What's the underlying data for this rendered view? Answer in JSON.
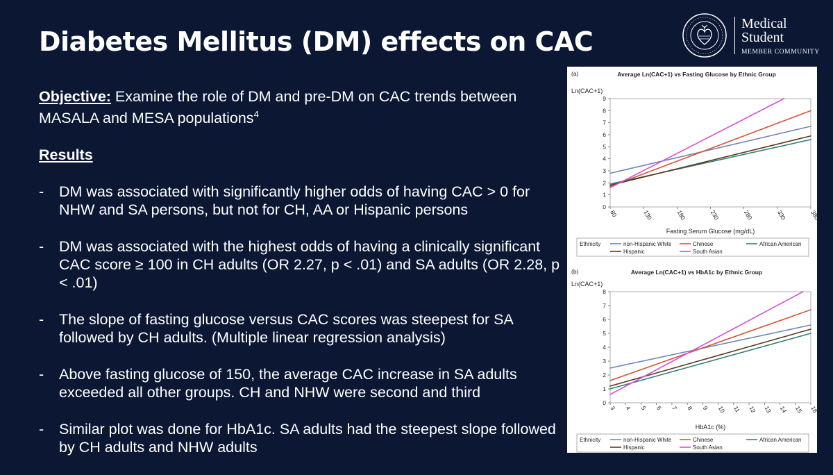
{
  "slide": {
    "title": "Diabetes Mellitus (DM) effects on CAC",
    "objective_label": "Objective:",
    "objective_text": " Examine the role of DM and pre-DM on CAC trends between MASALA and MESA populations",
    "objective_superscript": "4",
    "results_heading": "Results",
    "bullet_marker": "-",
    "bullets": [
      "DM was associated with significantly higher odds of having CAC > 0 for NHW and SA persons, but not for CH, AA or Hispanic persons",
      "DM was associated with the highest odds of having a clinically significant CAC score ≥ 100 in CH adults (OR 2.27, p < .01) and SA adults (OR 2.28, p < .01)",
      "The slope of fasting glucose versus CAC scores was steepest for SA followed by CH adults. (Multiple linear regression analysis)",
      "Above fasting glucose of 150, the average CAC increase in SA adults exceeded all other groups. CH and NHW were second and third",
      "Similar plot was done for HbA1c. SA adults had the steepest slope followed by CH adults and NHW adults"
    ]
  },
  "logo": {
    "line1": "Medical",
    "line2": "Student",
    "line3": "MEMBER COMMUNITY",
    "seal_text": "AMERICAN COLLEGE of CARDIOLOGY"
  },
  "colors": {
    "background": "#0b1733",
    "text": "#ffffff",
    "non_hispanic_white": "#6f86b8",
    "chinese": "#d4553a",
    "african_american": "#2d8077",
    "hispanic": "#5c3a1e",
    "south_asian": "#d64fd6"
  },
  "chart_data": [
    {
      "type": "line",
      "panel_label": "(a)",
      "title": "Average Ln(CAC+1) vs Fasting Glucose by Ethnic Group",
      "ylabel": "Ln(CAC+1)",
      "xlabel": "Fasting Serum Glucose (mg/dL)",
      "xlim": [
        80,
        380
      ],
      "ylim": [
        0,
        9
      ],
      "xticks": [
        80,
        130,
        180,
        230,
        280,
        330,
        380
      ],
      "yticks": [
        0,
        1,
        2,
        3,
        4,
        5,
        6,
        7,
        8,
        9
      ],
      "grid": false,
      "legend_title": "Ethnicity",
      "legend_position": "bottom",
      "series": [
        {
          "name": "non-Hispanic White",
          "color": "#6f86b8",
          "x": [
            80,
            380
          ],
          "y": [
            2.8,
            6.7
          ]
        },
        {
          "name": "Chinese",
          "color": "#d4553a",
          "x": [
            80,
            380
          ],
          "y": [
            1.7,
            8.0
          ]
        },
        {
          "name": "African American",
          "color": "#2d8077",
          "x": [
            80,
            380
          ],
          "y": [
            1.9,
            5.6
          ]
        },
        {
          "name": "Hispanic",
          "color": "#5c3a1e",
          "x": [
            80,
            380
          ],
          "y": [
            1.8,
            5.9
          ]
        },
        {
          "name": "South Asian",
          "color": "#d64fd6",
          "x": [
            80,
            340
          ],
          "y": [
            1.6,
            9.0
          ]
        }
      ]
    },
    {
      "type": "line",
      "panel_label": "(b)",
      "title": "Average Ln(CAC+1) vs HbA1c by Ethnic Group",
      "ylabel": "Ln(CAC+1)",
      "xlabel": "HbA1c (%)",
      "xlim": [
        3,
        16
      ],
      "ylim": [
        0,
        8
      ],
      "xticks": [
        3,
        4,
        5,
        6,
        7,
        8,
        9,
        10,
        11,
        12,
        13,
        14,
        15,
        16
      ],
      "yticks": [
        0,
        1,
        2,
        3,
        4,
        5,
        6,
        7,
        8
      ],
      "grid": false,
      "legend_title": "Ethnicity",
      "legend_position": "bottom",
      "series": [
        {
          "name": "non-Hispanic White",
          "color": "#6f86b8",
          "x": [
            3,
            16
          ],
          "y": [
            2.5,
            5.6
          ]
        },
        {
          "name": "Chinese",
          "color": "#d4553a",
          "x": [
            3,
            16
          ],
          "y": [
            1.6,
            6.7
          ]
        },
        {
          "name": "African American",
          "color": "#2d8077",
          "x": [
            3,
            16
          ],
          "y": [
            1.0,
            5.0
          ]
        },
        {
          "name": "Hispanic",
          "color": "#5c3a1e",
          "x": [
            3,
            16
          ],
          "y": [
            1.2,
            5.3
          ]
        },
        {
          "name": "South Asian",
          "color": "#d64fd6",
          "x": [
            3,
            15.5
          ],
          "y": [
            0.6,
            8.0
          ]
        }
      ]
    }
  ]
}
